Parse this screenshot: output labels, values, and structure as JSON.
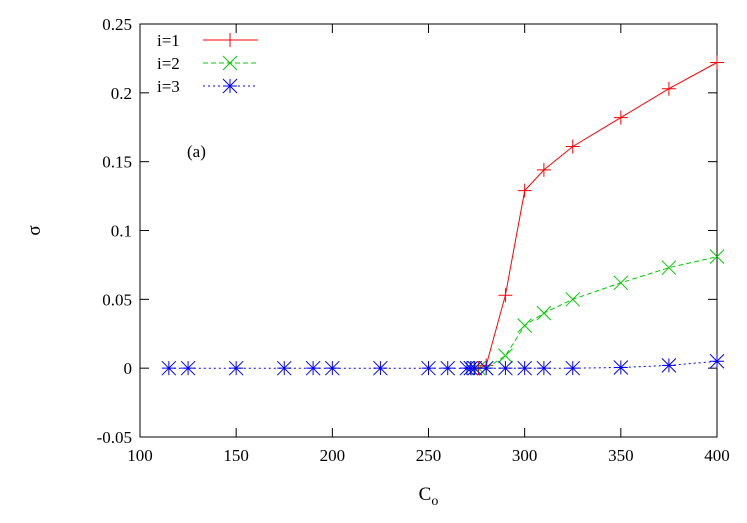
{
  "chart_data": {
    "type": "line",
    "title": "",
    "xlabel": "C",
    "xlabel_subscript": "o",
    "ylabel": "σ",
    "xlim": [
      100,
      400
    ],
    "ylim": [
      -0.05,
      0.25
    ],
    "xticks": [
      100,
      150,
      200,
      250,
      300,
      350,
      400
    ],
    "yticks": [
      -0.05,
      0,
      0.05,
      0.1,
      0.15,
      0.2,
      0.25
    ],
    "xtick_labels": [
      "100",
      "150",
      "200",
      "250",
      "300",
      "350",
      "400"
    ],
    "ytick_labels": [
      "-0.05",
      "0",
      "0.05",
      "0.1",
      "0.15",
      "0.2",
      "0.25"
    ],
    "grid": false,
    "legend_position": "top-left",
    "annotation": "(a)",
    "series": [
      {
        "name": "i=1",
        "color": "#ff0000",
        "line_style": "solid",
        "marker": "plus",
        "x": [
          272,
          274,
          276,
          280,
          290,
          300,
          310,
          325,
          350,
          375,
          400
        ],
        "y": [
          0,
          0,
          0,
          0.002,
          0.053,
          0.129,
          0.144,
          0.161,
          0.182,
          0.203,
          0.222
        ]
      },
      {
        "name": "i=2",
        "color": "#00cc00",
        "line_style": "dashed",
        "marker": "cross",
        "x": [
          272,
          274,
          276,
          280,
          290,
          300,
          310,
          325,
          350,
          375,
          400
        ],
        "y": [
          0,
          0,
          0,
          0,
          0.009,
          0.031,
          0.04,
          0.05,
          0.062,
          0.073,
          0.081
        ]
      },
      {
        "name": "i=3",
        "color": "#0000ff",
        "line_style": "dotted",
        "marker": "star",
        "x": [
          115,
          125,
          150,
          175,
          190,
          200,
          225,
          250,
          260,
          270,
          272,
          274,
          280,
          290,
          300,
          310,
          325,
          350,
          375,
          400
        ],
        "y": [
          0,
          0,
          0,
          0,
          0,
          0,
          0,
          0,
          0,
          0,
          0,
          0,
          0,
          0,
          0,
          0,
          0,
          0.0005,
          0.002,
          0.005
        ]
      }
    ]
  }
}
